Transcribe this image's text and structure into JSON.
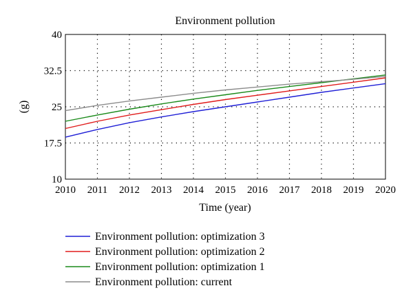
{
  "chart_data": {
    "type": "line",
    "title": "Environment pollution",
    "xlabel": "Time (year)",
    "ylabel": "(g)",
    "xlim": [
      2010,
      2020
    ],
    "ylim": [
      10,
      40
    ],
    "x_ticks": [
      "2010",
      "2011",
      "2012",
      "2013",
      "2014",
      "2015",
      "2016",
      "2017",
      "2018",
      "2019",
      "2020"
    ],
    "y_ticks": [
      "10",
      "17.5",
      "25",
      "32.5",
      "40"
    ],
    "grid": true,
    "legend_position": "below",
    "x": [
      2010,
      2011,
      2012,
      2013,
      2014,
      2015,
      2016,
      2017,
      2018,
      2019,
      2020
    ],
    "series": [
      {
        "name": "Environment pollution: optimization 3",
        "color": "#1f1fd6",
        "values": [
          18.7,
          20.3,
          21.7,
          22.9,
          24.0,
          25.0,
          26.0,
          27.0,
          28.0,
          28.9,
          29.8
        ]
      },
      {
        "name": "Environment pollution: optimization 2",
        "color": "#e01b1b",
        "values": [
          20.5,
          22.0,
          23.3,
          24.4,
          25.5,
          26.5,
          27.4,
          28.3,
          29.2,
          30.1,
          31.0
        ]
      },
      {
        "name": "Environment pollution: optimization 1",
        "color": "#1a8a1a",
        "values": [
          22.0,
          23.3,
          24.5,
          25.6,
          26.6,
          27.5,
          28.4,
          29.2,
          30.0,
          30.8,
          31.6
        ]
      },
      {
        "name": "Environment pollution: current",
        "color": "#8c8c8c",
        "values": [
          24.2,
          25.3,
          26.2,
          27.0,
          27.8,
          28.5,
          29.1,
          29.7,
          30.2,
          30.7,
          31.3
        ]
      }
    ]
  }
}
